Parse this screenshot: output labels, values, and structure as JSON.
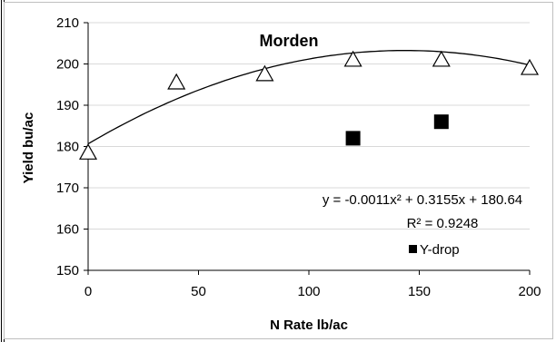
{
  "chart_data": {
    "type": "scatter",
    "title": "Morden",
    "xlabel": "N Rate lb/ac",
    "ylabel": "Yield bu/ac",
    "xlim": [
      0,
      200
    ],
    "ylim": [
      150,
      210
    ],
    "xticks": [
      0,
      50,
      100,
      150,
      200
    ],
    "yticks": [
      150,
      160,
      170,
      180,
      190,
      200,
      210
    ],
    "grid": "horizontal",
    "series": [
      {
        "marker": "open-triangle",
        "x": [
          0,
          40,
          80,
          120,
          160,
          200
        ],
        "y": [
          178.5,
          195.5,
          197.5,
          201,
          201,
          199
        ]
      },
      {
        "name": "Y-drop",
        "marker": "filled-square",
        "x": [
          120,
          160
        ],
        "y": [
          182,
          186
        ]
      }
    ],
    "trendline": {
      "type": "polynomial",
      "coefficients": [
        -0.0011,
        0.3155,
        180.64
      ],
      "equation": "y = -0.0011x² + 0.3155x + 180.64",
      "r_squared": "R² = 0.9248"
    },
    "legend": "bottom-right"
  }
}
